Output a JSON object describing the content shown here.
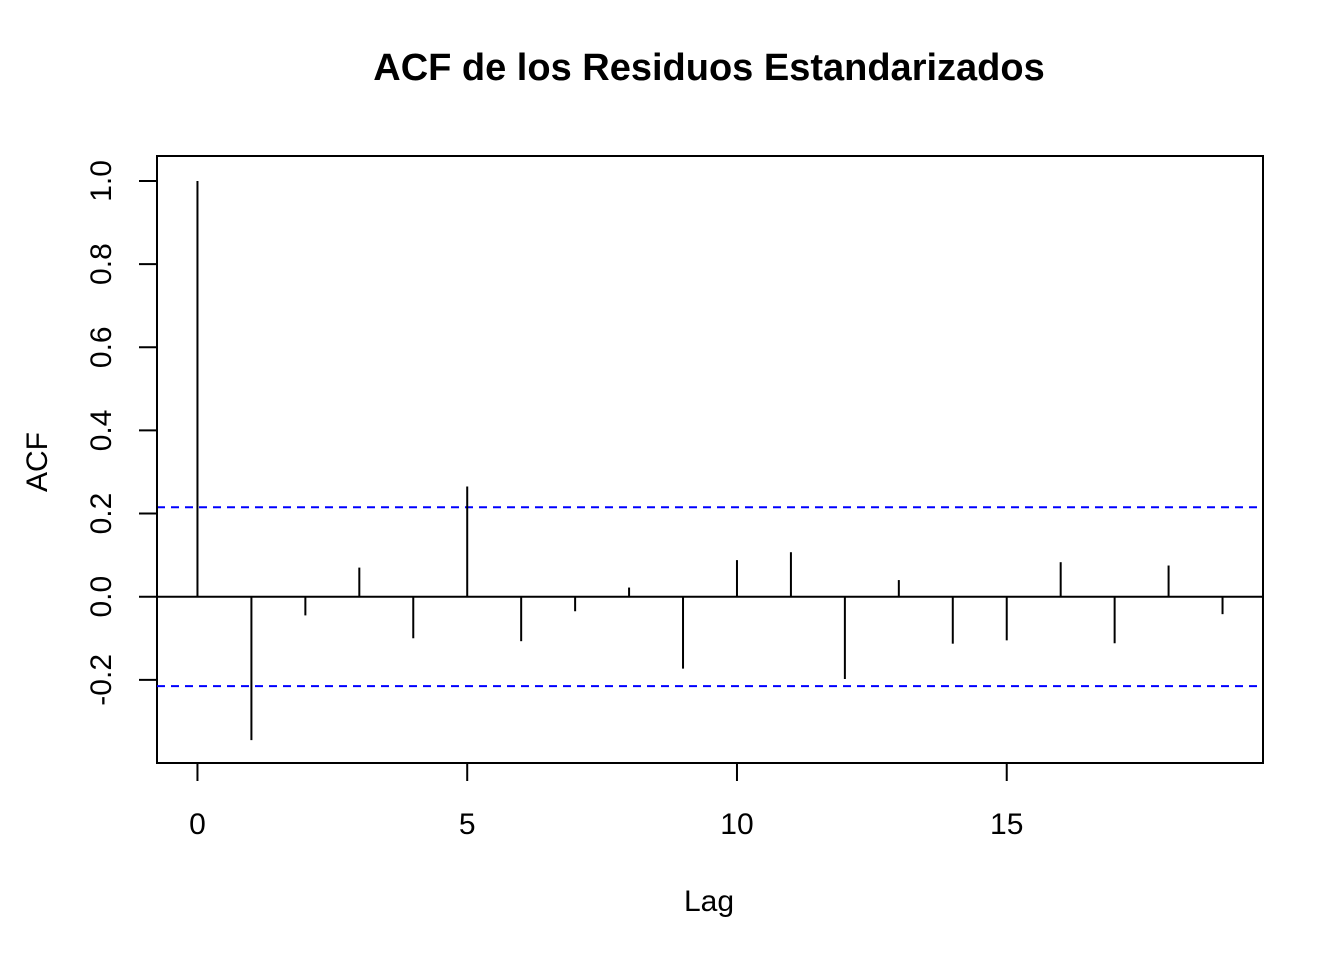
{
  "chart_data": {
    "type": "bar",
    "title": "ACF de los Residuos Estandarizados",
    "xlabel": "Lag",
    "ylabel": "ACF",
    "x": [
      0,
      1,
      2,
      3,
      4,
      5,
      6,
      7,
      8,
      9,
      10,
      11,
      12,
      13,
      14,
      15,
      16,
      17,
      18,
      19
    ],
    "values": [
      1.0,
      -0.345,
      -0.045,
      0.07,
      -0.1,
      0.265,
      -0.107,
      -0.035,
      0.022,
      -0.173,
      0.088,
      0.107,
      -0.198,
      0.04,
      -0.113,
      -0.105,
      0.083,
      -0.112,
      0.075,
      -0.042
    ],
    "confidence_bounds": [
      0.215,
      -0.215
    ],
    "xlim": [
      -0.75,
      19.75
    ],
    "ylim": [
      -0.4,
      1.06
    ],
    "xticks": [
      0,
      5,
      10,
      15
    ],
    "xtick_labels": [
      "0",
      "5",
      "10",
      "15"
    ],
    "yticks": [
      -0.2,
      0.0,
      0.2,
      0.4,
      0.6,
      0.8,
      1.0
    ],
    "ytick_labels": [
      "-0.2",
      "0.0",
      "0.2",
      "0.4",
      "0.6",
      "0.8",
      "1.0"
    ],
    "grid": false,
    "colors": {
      "bars": "#000000",
      "bounds": "#0000ff",
      "zero_line": "#000000",
      "frame": "#000000"
    }
  }
}
